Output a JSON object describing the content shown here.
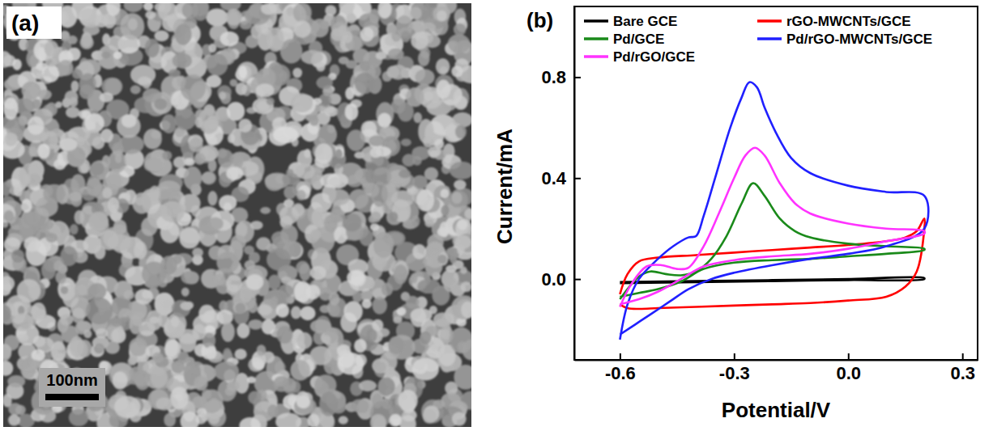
{
  "image_panel": {
    "label": "(a)",
    "scale_bar": "100nm"
  },
  "chart_data": {
    "type": "line",
    "panel_label": "(b)",
    "x_label": "Potential/V",
    "y_label": "Current/mA",
    "xlim": [
      -0.72,
      0.34
    ],
    "ylim": [
      -0.32,
      1.08
    ],
    "xticks": [
      -0.6,
      -0.3,
      {
        "value": 0,
        "label": "0.0"
      },
      0.3
    ],
    "yticks": [
      {
        "value": 0,
        "label": "0.0"
      },
      0.4,
      0.8
    ],
    "legend": "top",
    "series": [
      {
        "name": "Bare GCE",
        "color": "#000000",
        "x": [
          -0.6,
          -0.4,
          -0.2,
          0.0,
          0.2,
          0.2,
          0.0,
          -0.2,
          -0.4,
          -0.6
        ],
        "values": [
          -0.012,
          -0.008,
          -0.004,
          0.0,
          0.004,
          0.0,
          -0.004,
          -0.008,
          -0.012,
          -0.016
        ]
      },
      {
        "name": "rGO-MWCNTs/GCE",
        "color": "#ff0000",
        "x": [
          -0.6,
          -0.58,
          -0.55,
          -0.5,
          -0.4,
          -0.3,
          -0.2,
          -0.1,
          0.0,
          0.1,
          0.15,
          0.18,
          0.2,
          0.2,
          0.18,
          0.15,
          0.1,
          0.0,
          -0.1,
          -0.2,
          -0.3,
          -0.4,
          -0.5,
          -0.55,
          -0.58,
          -0.6
        ],
        "values": [
          -0.06,
          0.02,
          0.07,
          0.085,
          0.095,
          0.105,
          0.115,
          0.125,
          0.135,
          0.15,
          0.165,
          0.19,
          0.24,
          0.2,
          0.03,
          -0.03,
          -0.07,
          -0.085,
          -0.095,
          -0.1,
          -0.105,
          -0.11,
          -0.115,
          -0.118,
          -0.115,
          -0.1
        ]
      },
      {
        "name": "Pd/GCE",
        "color": "#1a8a1a",
        "x": [
          -0.6,
          -0.55,
          -0.52,
          -0.48,
          -0.44,
          -0.4,
          -0.36,
          -0.32,
          -0.28,
          -0.25,
          -0.22,
          -0.18,
          -0.14,
          -0.1,
          0.0,
          0.1,
          0.2,
          0.2,
          0.1,
          0.0,
          -0.1,
          -0.2,
          -0.3,
          -0.38,
          -0.44,
          -0.5,
          -0.55,
          -0.6
        ],
        "values": [
          -0.08,
          0.01,
          0.03,
          0.02,
          0.015,
          0.03,
          0.08,
          0.17,
          0.3,
          0.38,
          0.33,
          0.24,
          0.19,
          0.165,
          0.14,
          0.13,
          0.12,
          0.115,
          0.1,
          0.09,
          0.08,
          0.075,
          0.065,
          0.04,
          -0.01,
          -0.04,
          -0.055,
          -0.07
        ]
      },
      {
        "name": "Pd/rGO-MWCNTs/GCE",
        "color": "#2020ff",
        "x": [
          -0.6,
          -0.58,
          -0.55,
          -0.5,
          -0.46,
          -0.42,
          -0.4,
          -0.38,
          -0.35,
          -0.31,
          -0.28,
          -0.26,
          -0.24,
          -0.22,
          -0.19,
          -0.15,
          -0.1,
          0.0,
          0.1,
          0.2,
          0.2,
          0.1,
          0.0,
          -0.1,
          -0.2,
          -0.3,
          -0.36,
          -0.42,
          -0.47,
          -0.52,
          -0.56,
          -0.6
        ],
        "values": [
          -0.24,
          -0.1,
          0.0,
          0.08,
          0.13,
          0.165,
          0.17,
          0.25,
          0.4,
          0.6,
          0.72,
          0.78,
          0.76,
          0.68,
          0.58,
          0.48,
          0.42,
          0.37,
          0.345,
          0.33,
          0.2,
          0.13,
          0.1,
          0.08,
          0.055,
          0.025,
          0.0,
          -0.04,
          -0.09,
          -0.14,
          -0.18,
          -0.22
        ]
      },
      {
        "name": "Pd/rGO/GCE",
        "color": "#ff33ff",
        "x": [
          -0.6,
          -0.57,
          -0.53,
          -0.49,
          -0.45,
          -0.42,
          -0.38,
          -0.34,
          -0.3,
          -0.27,
          -0.245,
          -0.22,
          -0.18,
          -0.14,
          -0.1,
          0.0,
          0.1,
          0.2,
          0.2,
          0.1,
          0.0,
          -0.1,
          -0.2,
          -0.3,
          -0.38,
          -0.44,
          -0.5,
          -0.55,
          -0.6
        ],
        "values": [
          -0.11,
          -0.02,
          0.05,
          0.055,
          0.04,
          0.045,
          0.13,
          0.26,
          0.4,
          0.49,
          0.52,
          0.49,
          0.38,
          0.3,
          0.26,
          0.22,
          0.2,
          0.19,
          0.18,
          0.15,
          0.12,
          0.1,
          0.09,
          0.075,
          0.05,
          0.0,
          -0.05,
          -0.08,
          -0.1
        ]
      }
    ]
  }
}
